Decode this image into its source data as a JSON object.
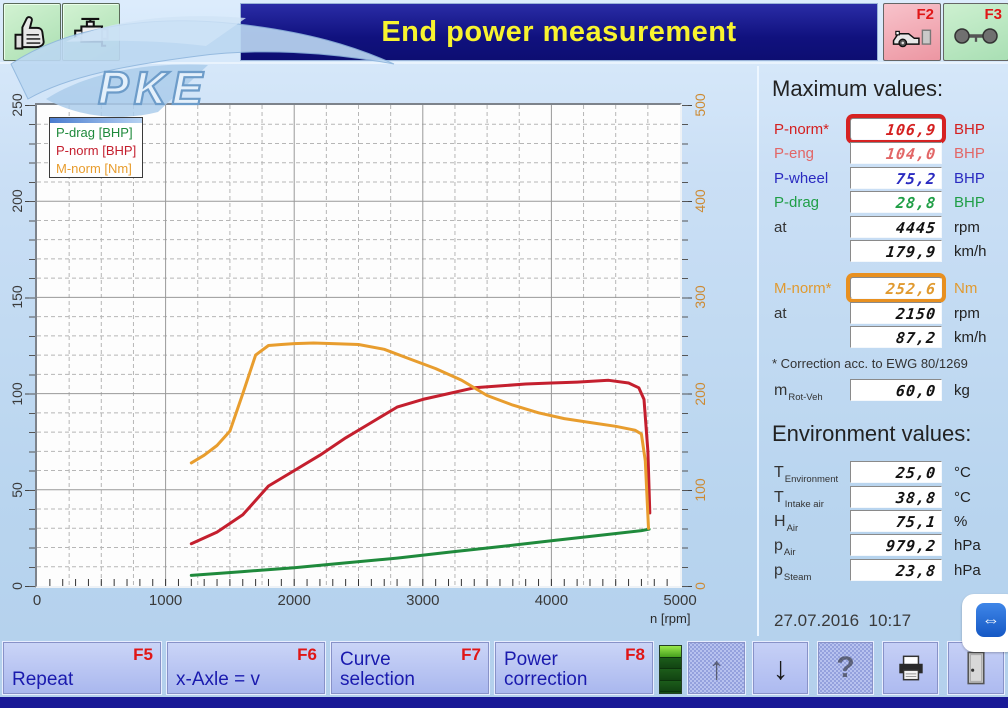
{
  "header": {
    "title": "End power measurement",
    "f2_key": "F2",
    "f3_key": "F3"
  },
  "legend": {
    "items": [
      {
        "label": "P-drag [BHP]",
        "color": "#1f8a3c"
      },
      {
        "label": "P-norm [BHP]",
        "color": "#c41f2e"
      },
      {
        "label": "M-norm [Nm]",
        "color": "#e89d2e"
      }
    ]
  },
  "chart_data": {
    "type": "line",
    "xlabel": "n [rpm]",
    "xlim": [
      0,
      5000
    ],
    "x_ticks": [
      0,
      1000,
      2000,
      3000,
      4000,
      5000
    ],
    "y_left": {
      "ticks": [
        0,
        50,
        100,
        150,
        200,
        250
      ],
      "lim": [
        0,
        250
      ]
    },
    "y_right": {
      "ticks": [
        0,
        100,
        200,
        300,
        400,
        500
      ],
      "lim": [
        0,
        500
      ],
      "color": "#cc8a33"
    },
    "grid": {
      "solid_x_every": 1000,
      "dashed_x_every": 250,
      "solid_y_every": 50,
      "dashed_y_every": 10,
      "minor_x_tick_every": 100
    },
    "series": [
      {
        "name": "P-drag [BHP]",
        "axis": "left",
        "color": "#1f8a3c",
        "points": [
          [
            1200,
            5.5
          ],
          [
            1600,
            7.5
          ],
          [
            2000,
            9.5
          ],
          [
            2400,
            12
          ],
          [
            2800,
            14.5
          ],
          [
            3200,
            17.5
          ],
          [
            3600,
            20.5
          ],
          [
            4000,
            23.5
          ],
          [
            4400,
            26.5
          ],
          [
            4700,
            28.8
          ],
          [
            4760,
            29.5
          ]
        ]
      },
      {
        "name": "P-norm [BHP]",
        "axis": "left",
        "color": "#c41f2e",
        "points": [
          [
            1200,
            22
          ],
          [
            1400,
            28
          ],
          [
            1600,
            37
          ],
          [
            1800,
            52
          ],
          [
            2000,
            60
          ],
          [
            2200,
            68
          ],
          [
            2400,
            77
          ],
          [
            2600,
            85
          ],
          [
            2800,
            93
          ],
          [
            3000,
            97
          ],
          [
            3200,
            100
          ],
          [
            3400,
            103
          ],
          [
            3600,
            104
          ],
          [
            3800,
            105
          ],
          [
            4000,
            105.5
          ],
          [
            4200,
            106
          ],
          [
            4445,
            106.9
          ],
          [
            4600,
            105.5
          ],
          [
            4680,
            103
          ],
          [
            4720,
            97
          ],
          [
            4750,
            70
          ],
          [
            4765,
            38
          ]
        ]
      },
      {
        "name": "M-norm [Nm]",
        "axis": "right",
        "color": "#e89d2e",
        "points": [
          [
            1200,
            128
          ],
          [
            1300,
            136
          ],
          [
            1400,
            146
          ],
          [
            1500,
            161
          ],
          [
            1600,
            200
          ],
          [
            1700,
            240
          ],
          [
            1800,
            250
          ],
          [
            1900,
            251
          ],
          [
            2000,
            252
          ],
          [
            2150,
            252.6
          ],
          [
            2300,
            252
          ],
          [
            2500,
            251
          ],
          [
            2700,
            246
          ],
          [
            2900,
            236
          ],
          [
            3100,
            226
          ],
          [
            3300,
            214
          ],
          [
            3500,
            198
          ],
          [
            3700,
            188
          ],
          [
            3900,
            180
          ],
          [
            4100,
            174
          ],
          [
            4300,
            170
          ],
          [
            4500,
            166
          ],
          [
            4650,
            162
          ],
          [
            4700,
            158
          ],
          [
            4730,
            130
          ],
          [
            4755,
            60
          ]
        ]
      }
    ]
  },
  "max": {
    "title": "Maximum values:",
    "rows": [
      {
        "label": "P-norm*",
        "value": "106,9",
        "unit": "BHP"
      },
      {
        "label": "P-eng",
        "value": "104,0",
        "unit": "BHP"
      },
      {
        "label": "P-wheel",
        "value": "75,2",
        "unit": "BHP"
      },
      {
        "label": "P-drag",
        "value": "28,8",
        "unit": "BHP"
      },
      {
        "label": "at",
        "value": "4445",
        "unit": "rpm"
      },
      {
        "label": "",
        "value": "179,9",
        "unit": "km/h"
      },
      {
        "label": "M-norm*",
        "value": "252,6",
        "unit": "Nm"
      },
      {
        "label": "at",
        "value": "2150",
        "unit": "rpm"
      },
      {
        "label": "",
        "value": "87,2",
        "unit": "km/h"
      }
    ],
    "note": "* Correction acc. to EWG 80/1269",
    "mrot": {
      "main": "m",
      "sub": "Rot-Veh",
      "value": "60,0",
      "unit": "kg"
    }
  },
  "env": {
    "title": "Environment values:",
    "rows": [
      {
        "main": "T",
        "sub": "Environment",
        "value": "25,0",
        "unit": "°C"
      },
      {
        "main": "T",
        "sub": "Intake air",
        "value": "38,8",
        "unit": "°C"
      },
      {
        "main": "H",
        "sub": "Air",
        "value": "75,1",
        "unit": "%"
      },
      {
        "main": "p",
        "sub": "Air",
        "value": "979,2",
        "unit": "hPa"
      },
      {
        "main": "p",
        "sub": "Steam",
        "value": "23,8",
        "unit": "hPa"
      }
    ]
  },
  "datetime": "27.07.2016  10:17",
  "footer": {
    "buttons": [
      {
        "label": "Repeat",
        "fkey": "F5"
      },
      {
        "label": "x-Axle = v",
        "fkey": "F6"
      },
      {
        "label": "Curve selection",
        "fkey": "F7"
      },
      {
        "label": "Power correction",
        "fkey": "F8"
      }
    ],
    "glyphs": {
      "up": "↑",
      "down": "↓",
      "help": "?",
      "teamviewer": "⇔"
    }
  },
  "watermark_text": "PKE",
  "colors": {
    "title_bg": "#10117e",
    "title_text": "#f8f32f",
    "fkey_red": "#e01616",
    "header_button_green": "#b6e3b8",
    "f2_button_pink": "#f0a3ae",
    "footer_button_bg": "#b4c0f0",
    "footer_button_text": "#1a1aae",
    "curve_pdrag": "#1f8a3c",
    "curve_pnorm": "#c41f2e",
    "curve_mnorm": "#e89d2e",
    "right_axis": "#cc8a33",
    "highlight_red": "#d62222",
    "highlight_orange": "#e89020",
    "led_on": "#7cd438",
    "led_off": "#164e14"
  }
}
